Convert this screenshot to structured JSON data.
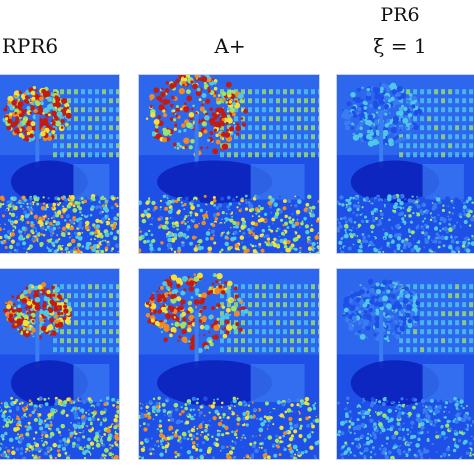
{
  "columns": [
    {
      "label": "RPR6"
    },
    {
      "label": "A+"
    },
    {
      "label_line1": "PR6",
      "label_line2": "ξ = 1"
    }
  ],
  "rows": 2,
  "colormap": [
    "#0a1fb8",
    "#1e4fe6",
    "#3a7cf2",
    "#4fc8e8",
    "#9be36a",
    "#f2e13a",
    "#f08a24",
    "#c21b12"
  ]
}
